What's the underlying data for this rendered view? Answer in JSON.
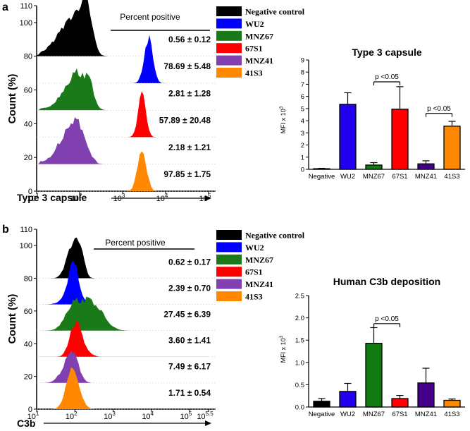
{
  "chart_data": [
    {
      "panel": "a",
      "type": "histogram-overlay",
      "xlabel": "Type 3 capsule",
      "ylabel": "Count (%)",
      "x_ticks": [
        {
          "base": "10",
          "exp": "1",
          "v": 1
        },
        {
          "base": "10",
          "exp": "2",
          "v": 2
        },
        {
          "base": "10",
          "exp": "3",
          "v": 3
        },
        {
          "base": "10",
          "exp": "4",
          "v": 4
        },
        {
          "base": "10",
          "exp": "5",
          "v": 5
        }
      ],
      "y_ticks": [
        "0",
        "20",
        "40",
        "60",
        "80",
        "100",
        "110"
      ],
      "y_tick_values": [
        0,
        20,
        40,
        60,
        80,
        100,
        110
      ],
      "xlim": [
        1,
        5
      ],
      "header": "Percent positive",
      "legend": [
        {
          "name": "Negative control",
          "color": "#000000"
        },
        {
          "name": "WU2",
          "color": "#0000ff"
        },
        {
          "name": "MNZ67",
          "color": "#1a7a1a"
        },
        {
          "name": "67S1",
          "color": "#ff0000"
        },
        {
          "name": "MNZ41",
          "color": "#8040b0"
        },
        {
          "name": "41S3",
          "color": "#ff8800"
        }
      ],
      "percent_positive": [
        "0.56 ± 0.12",
        "78.69 ± 5.48",
        "2.81 ± 1.28",
        "57.89 ± 20.48",
        "2.18 ± 1.21",
        "97.85 ± 1.75"
      ],
      "histogram_peaks_log10": [
        2.05,
        3.6,
        2.0,
        3.45,
        2.0,
        3.45
      ]
    },
    {
      "panel": "a",
      "type": "bar",
      "title": "Type 3 capsule",
      "ylabel": "MFI x 10",
      "ylabel_exp": "3",
      "categories": [
        "Negative",
        "WU2",
        "MNZ67",
        "67S1",
        "MNZ41",
        "41S3"
      ],
      "values": [
        0.05,
        5.35,
        0.35,
        4.95,
        0.45,
        3.55
      ],
      "errors": [
        0.03,
        0.95,
        0.2,
        1.85,
        0.25,
        0.4
      ],
      "colors": [
        "#000000",
        "#2200ee",
        "#117a11",
        "#ff0000",
        "#440088",
        "#ff8800"
      ],
      "ylim": [
        0,
        9
      ],
      "y_ticks": [
        "0",
        "1",
        "2",
        "3",
        "4",
        "5",
        "6",
        "7",
        "8",
        "9"
      ],
      "y_tick_values": [
        0,
        1,
        2,
        3,
        4,
        5,
        6,
        7,
        8,
        9
      ],
      "significance": [
        {
          "label": "p <0.05",
          "from": 2,
          "to": 3,
          "y": 7.2
        },
        {
          "label": "p <0.05",
          "from": 4,
          "to": 5,
          "y": 4.6
        }
      ]
    },
    {
      "panel": "b",
      "type": "histogram-overlay",
      "xlabel": "C3b",
      "ylabel": "Count (%)",
      "x_ticks": [
        {
          "base": "10",
          "exp": "1",
          "v": 1
        },
        {
          "base": "10",
          "exp": "2",
          "v": 2
        },
        {
          "base": "10",
          "exp": "3",
          "v": 3
        },
        {
          "base": "10",
          "exp": "4",
          "v": 4
        },
        {
          "base": "10",
          "exp": "5",
          "v": 5
        },
        {
          "base": "10",
          "exp": "5.5",
          "v": 5.5
        }
      ],
      "y_ticks": [
        "0",
        "20",
        "40",
        "60",
        "80",
        "100",
        "110"
      ],
      "y_tick_values": [
        0,
        20,
        40,
        60,
        80,
        100,
        110
      ],
      "xlim": [
        1,
        5.5
      ],
      "header": "Percent positive",
      "legend": [
        {
          "name": "Negative control",
          "color": "#000000"
        },
        {
          "name": "WU2",
          "color": "#0000ff"
        },
        {
          "name": "MNZ67",
          "color": "#1a7a1a"
        },
        {
          "name": "67S1",
          "color": "#ff0000"
        },
        {
          "name": "MNZ41",
          "color": "#8040b0"
        },
        {
          "name": "41S3",
          "color": "#ff8800"
        }
      ],
      "percent_positive": [
        "0.62 ± 0.17",
        "2.39 ± 0.70",
        "27.45 ± 6.39",
        "3.60 ± 1.41",
        "7.49 ± 6.17",
        "1.71 ± 0.54"
      ],
      "histogram_peaks_log10": [
        1.95,
        1.98,
        2.2,
        2.0,
        1.95,
        1.9
      ]
    },
    {
      "panel": "b",
      "type": "bar",
      "title": "Human C3b deposition",
      "ylabel": "MFI x 10",
      "ylabel_exp": "3",
      "categories": [
        "Negative",
        "WU2",
        "MNZ67",
        "67S1",
        "MNZ41",
        "41S3"
      ],
      "values": [
        0.13,
        0.35,
        1.43,
        0.19,
        0.54,
        0.15
      ],
      "errors": [
        0.06,
        0.18,
        0.35,
        0.07,
        0.33,
        0.03
      ],
      "colors": [
        "#000000",
        "#2200ee",
        "#117a11",
        "#ff0000",
        "#440088",
        "#ff8800"
      ],
      "ylim": [
        0,
        2.5
      ],
      "y_ticks": [
        "0.0",
        "0.5",
        "1.0",
        "1.5",
        "2.0",
        "2.5"
      ],
      "y_tick_values": [
        0,
        0.5,
        1.0,
        1.5,
        2.0,
        2.5
      ],
      "significance": [
        {
          "label": "p <0.05",
          "from": 2,
          "to": 3,
          "y": 1.87
        }
      ]
    }
  ],
  "panel_labels": [
    "a",
    "b"
  ]
}
